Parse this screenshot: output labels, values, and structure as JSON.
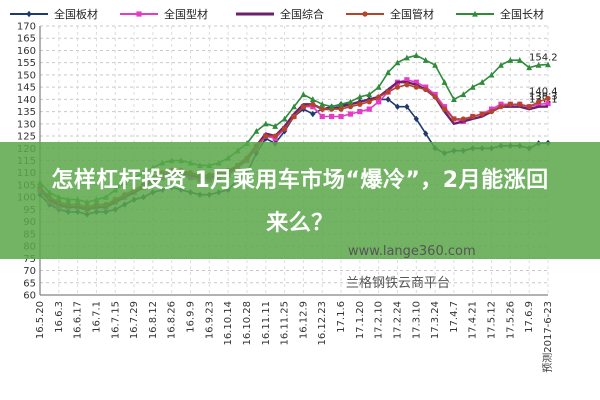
{
  "chart_data": {
    "type": "line",
    "title": "",
    "xlabel": "",
    "ylabel": "",
    "ylim": [
      60,
      170
    ],
    "yticks": [
      60,
      65,
      70,
      75,
      80,
      85,
      90,
      95,
      100,
      105,
      110,
      115,
      120,
      125,
      130,
      135,
      140,
      145,
      150,
      155,
      160,
      165,
      170
    ],
    "x_labels": [
      "16.5.20",
      "16.6.3",
      "16.6.17",
      "16.7.1",
      "16.7.15",
      "16.7.29",
      "16.8.12",
      "16.8.26",
      "16.9.9",
      "16.9.23",
      "16.10.14",
      "16.10.28",
      "16.11.11",
      "16.11.25",
      "16.12.9",
      "16.12.23",
      "17.1.6",
      "17.1.20",
      "17.2.10",
      "17.2.24",
      "17.3.10",
      "17.3.24",
      "17.4.7",
      "17.4.21",
      "17.5.12",
      "17.5.26",
      "17.6.9",
      "预测2017-6-23"
    ],
    "x_label_points": [
      0,
      2,
      4,
      6,
      8,
      10,
      12,
      14,
      16,
      18,
      20,
      22,
      24,
      26,
      28,
      30,
      32,
      34,
      36,
      38,
      40,
      42,
      44,
      46,
      48,
      50,
      52,
      54
    ],
    "legend_position": "top",
    "grid": true,
    "series": [
      {
        "name": "全国板材",
        "color": "#1F3A6E",
        "marker": "diamond",
        "values": [
          101,
          97,
          95,
          94,
          94,
          93,
          94,
          94,
          95,
          97,
          99,
          100,
          102,
          103,
          104,
          103,
          102,
          101,
          101,
          102,
          103,
          107,
          110,
          118,
          124,
          122,
          127,
          133,
          136,
          134,
          136,
          137,
          138,
          138,
          139,
          140,
          140,
          140,
          137,
          137,
          132,
          126,
          120,
          118,
          119,
          119,
          120,
          120,
          120,
          121,
          121,
          121,
          120,
          122,
          122.2
        ],
        "end_label": ""
      },
      {
        "name": "全国型材",
        "color": "#E63AC8",
        "marker": "square",
        "values": [
          103,
          98,
          96,
          96,
          96,
          95,
          96,
          96,
          98,
          100,
          102,
          104,
          106,
          108,
          109,
          109,
          108,
          107,
          107,
          108,
          109,
          112,
          115,
          120,
          125,
          124,
          128,
          133,
          137,
          137,
          133,
          133,
          133,
          134,
          135,
          136,
          139,
          143,
          147,
          148,
          147,
          145,
          142,
          137,
          132,
          131,
          133,
          134,
          136,
          138,
          138,
          138,
          137,
          138,
          138.3
        ],
        "end_label": "138.3"
      },
      {
        "name": "全国综合",
        "color": "#6E1F6E",
        "marker": "none",
        "values": [
          104,
          99,
          97,
          96,
          96,
          95,
          96,
          96,
          98,
          100,
          102,
          104,
          107,
          109,
          110,
          110,
          109,
          108,
          108,
          109,
          110,
          113,
          116,
          121,
          126,
          125,
          129,
          134,
          138,
          138,
          136,
          136,
          137,
          138,
          139,
          140,
          141,
          144,
          147,
          147,
          146,
          144,
          141,
          135,
          130,
          131,
          132,
          133,
          135,
          137,
          137,
          137,
          136,
          137,
          137.1
        ],
        "end_label": "137.1"
      },
      {
        "name": "全国管材",
        "color": "#B4452A",
        "marker": "circle",
        "values": [
          104,
          100,
          98,
          97,
          97,
          96,
          97,
          97,
          99,
          101,
          103,
          105,
          108,
          110,
          111,
          111,
          110,
          109,
          109,
          110,
          111,
          113,
          116,
          121,
          125,
          125,
          128,
          133,
          137,
          138,
          136,
          136,
          136,
          137,
          138,
          139,
          141,
          143,
          145,
          146,
          145,
          144,
          141,
          136,
          132,
          132,
          133,
          134,
          135,
          137,
          138,
          138,
          137,
          139,
          140.4
        ],
        "end_label": "140.4"
      },
      {
        "name": "全国长材",
        "color": "#2E8B3A",
        "marker": "triangle",
        "values": [
          106,
          102,
          100,
          99,
          99,
          98,
          99,
          100,
          103,
          106,
          108,
          110,
          112,
          114,
          115,
          115,
          114,
          113,
          113,
          114,
          116,
          119,
          122,
          127,
          130,
          129,
          132,
          137,
          142,
          140,
          138,
          137,
          138,
          139,
          141,
          142,
          145,
          151,
          155,
          157,
          158,
          156,
          154,
          147,
          140,
          142,
          145,
          147,
          150,
          154,
          156,
          156,
          153,
          154,
          154.2
        ],
        "end_label": "154.2"
      }
    ]
  },
  "banner": {
    "line1": "怎样杠杆投资 1月乘用车市场“爆冷”，2月能涨回",
    "line2": "来么？"
  },
  "watermark": {
    "url": "www.lange360.com",
    "name": "兰格钢铁云商平台"
  }
}
